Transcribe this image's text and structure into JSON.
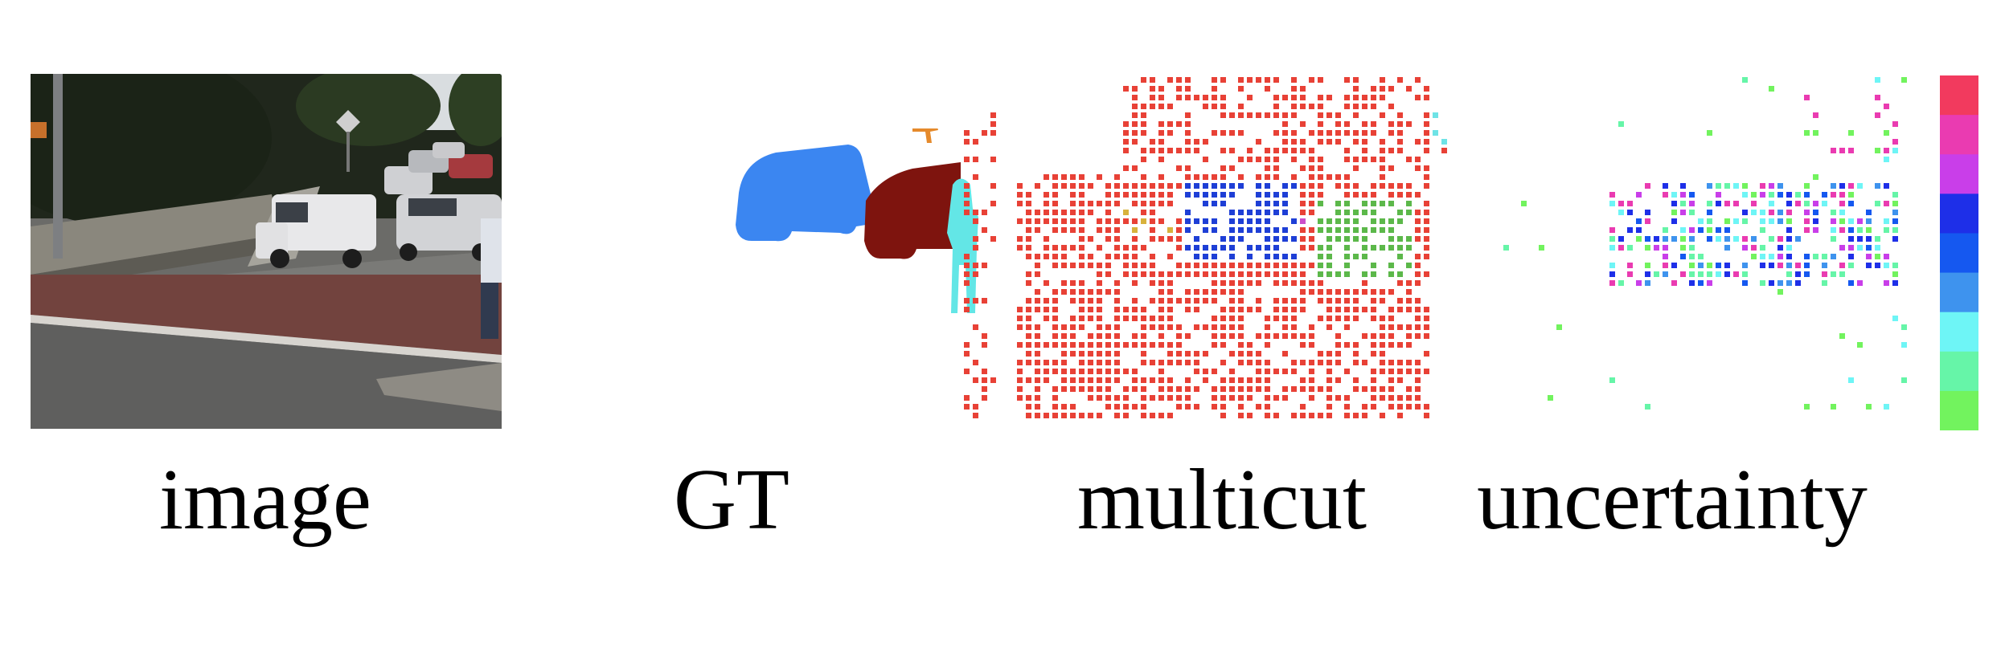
{
  "captions": {
    "image": "image",
    "gt": "GT",
    "multicut": "multicut",
    "uncertainty": "uncertainty"
  },
  "colors": {
    "multicut_segments": [
      "#e84136",
      "#1e3fd6",
      "#5cb84a",
      "#cc4ec9",
      "#d8b23c"
    ],
    "uncertainty_levels": [
      "#f23a5e",
      "#ea3bb1",
      "#c93ee9",
      "#1e2fe8",
      "#1558f0",
      "#3e93ee",
      "#6ef5f6",
      "#66f5a8",
      "#72f35e"
    ],
    "gt_segments": {
      "car_blue": "#3b86f1",
      "car_red": "#7e140e",
      "person": "#63e6e6",
      "sign": "#e58a2c"
    }
  },
  "icons": [
    "color-legend-bar"
  ]
}
